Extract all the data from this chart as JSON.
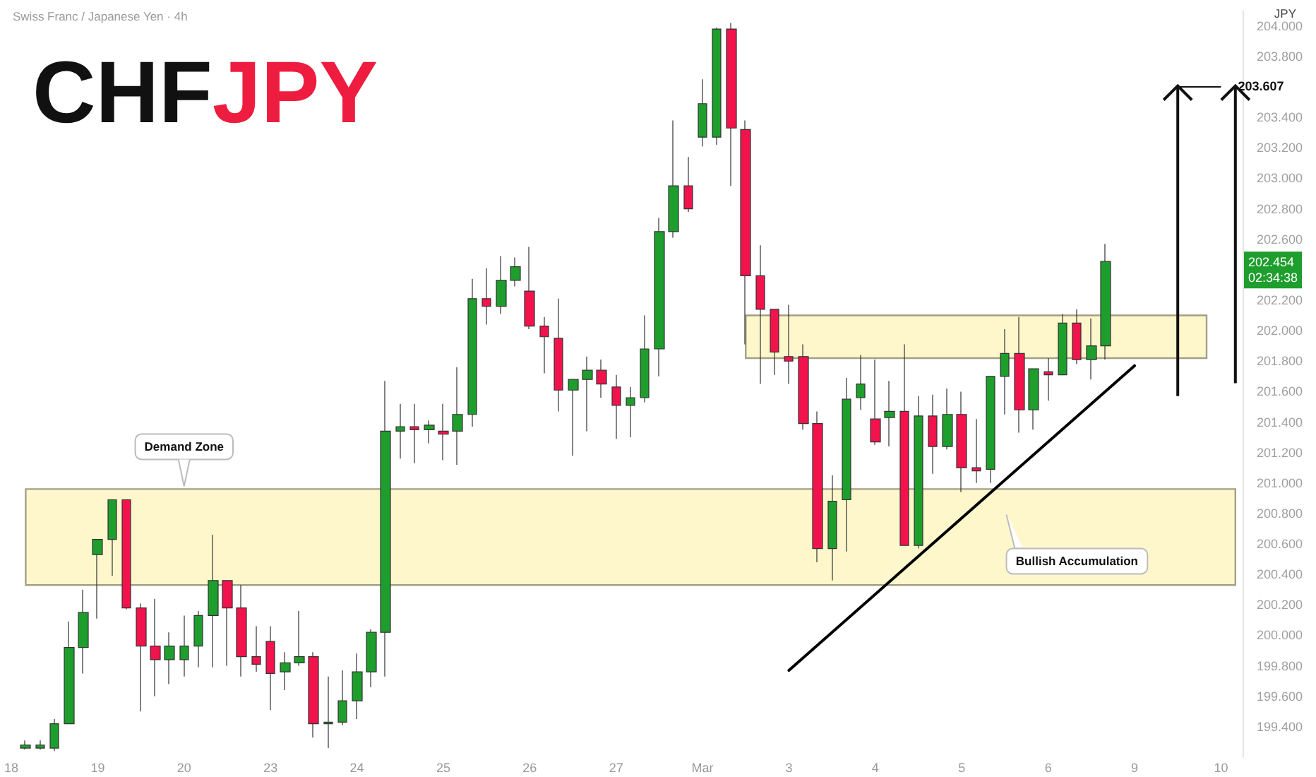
{
  "chart_data": {
    "type": "candlestick",
    "title": "CHFJPY",
    "subtitle": "Swiss Franc / Japanese Yen · 4h",
    "ylabel": "JPY",
    "categories": [
      "18",
      null,
      null,
      null,
      null,
      null,
      "19",
      null,
      null,
      null,
      null,
      null,
      "20",
      null,
      null,
      null,
      null,
      null,
      "23",
      null,
      null,
      null,
      null,
      null,
      "24",
      null,
      null,
      null,
      null,
      null,
      "25",
      null,
      null,
      null,
      null,
      null,
      "26",
      null,
      null,
      null,
      null,
      null,
      "27",
      null,
      null,
      null,
      null,
      null,
      "Mar",
      null,
      null,
      null,
      null,
      null,
      "3",
      null,
      null,
      null,
      null,
      null,
      "4",
      null,
      null,
      null,
      null,
      null,
      "5",
      null,
      null,
      null,
      null,
      null,
      "6",
      null,
      null,
      null,
      null,
      null,
      "9",
      null,
      null,
      null,
      null,
      null,
      "10",
      null
    ],
    "ohlc": [
      null,
      [
        199.26,
        199.31,
        199.25,
        199.28
      ],
      [
        199.26,
        199.31,
        199.25,
        199.28
      ],
      [
        199.26,
        199.45,
        199.24,
        199.42
      ],
      [
        199.42,
        200.09,
        199.42,
        199.92
      ],
      [
        199.92,
        200.3,
        199.75,
        200.15
      ],
      [
        200.53,
        200.63,
        200.11,
        200.63
      ],
      [
        200.63,
        200.89,
        200.39,
        200.89
      ],
      [
        200.89,
        200.89,
        200.17,
        200.18
      ],
      [
        200.18,
        200.21,
        199.5,
        199.93
      ],
      [
        199.93,
        200.24,
        199.6,
        199.84
      ],
      [
        199.84,
        200.02,
        199.68,
        199.93
      ],
      [
        199.84,
        200.13,
        199.73,
        199.93
      ],
      [
        199.93,
        200.16,
        199.79,
        200.13
      ],
      [
        200.13,
        200.66,
        199.79,
        200.36
      ],
      [
        200.36,
        200.36,
        199.8,
        200.18
      ],
      [
        200.18,
        200.33,
        199.73,
        199.86
      ],
      [
        199.86,
        200.06,
        199.76,
        199.81
      ],
      [
        199.96,
        200.06,
        199.51,
        199.75
      ],
      [
        199.76,
        199.89,
        199.64,
        199.82
      ],
      [
        199.82,
        200.16,
        199.8,
        199.86
      ],
      [
        199.86,
        199.89,
        199.33,
        199.42
      ],
      [
        199.42,
        199.73,
        199.26,
        199.43
      ],
      [
        199.43,
        199.77,
        199.41,
        199.57
      ],
      [
        199.57,
        199.88,
        199.45,
        199.76
      ],
      [
        199.76,
        200.04,
        199.66,
        200.02
      ],
      [
        200.02,
        201.67,
        199.73,
        201.34
      ],
      [
        201.34,
        201.52,
        201.16,
        201.37
      ],
      [
        201.37,
        201.52,
        201.13,
        201.35
      ],
      [
        201.35,
        201.41,
        201.26,
        201.38
      ],
      [
        201.34,
        201.52,
        201.15,
        201.32
      ],
      [
        201.34,
        201.76,
        201.12,
        201.45
      ],
      [
        201.45,
        202.34,
        201.37,
        202.21
      ],
      [
        202.21,
        202.41,
        202.04,
        202.16
      ],
      [
        202.16,
        202.49,
        202.11,
        202.33
      ],
      [
        202.33,
        202.48,
        202.29,
        202.42
      ],
      [
        202.26,
        202.55,
        202.01,
        202.03
      ],
      [
        202.03,
        202.09,
        201.72,
        201.96
      ],
      [
        201.95,
        202.21,
        201.47,
        201.61
      ],
      [
        201.61,
        201.68,
        201.18,
        201.68
      ],
      [
        201.68,
        201.83,
        201.34,
        201.74
      ],
      [
        201.74,
        201.81,
        201.56,
        201.65
      ],
      [
        201.63,
        201.71,
        201.29,
        201.51
      ],
      [
        201.51,
        201.63,
        201.3,
        201.56
      ],
      [
        201.56,
        202.1,
        201.53,
        201.88
      ],
      [
        201.88,
        202.74,
        201.7,
        202.65
      ],
      [
        202.65,
        203.38,
        202.61,
        202.95
      ],
      [
        202.95,
        203.14,
        202.78,
        202.8
      ],
      [
        203.27,
        203.65,
        203.21,
        203.49
      ],
      [
        203.27,
        203.99,
        203.22,
        203.98
      ],
      [
        203.98,
        204.02,
        202.95,
        203.33
      ],
      [
        203.32,
        203.38,
        201.91,
        202.36
      ],
      [
        202.36,
        202.56,
        201.65,
        202.14
      ],
      [
        202.14,
        202.14,
        201.71,
        201.86
      ],
      [
        201.83,
        202.17,
        201.65,
        201.8
      ],
      [
        201.83,
        201.91,
        201.35,
        201.39
      ],
      [
        201.39,
        201.47,
        200.48,
        200.57
      ],
      [
        200.57,
        201.05,
        200.36,
        200.88
      ],
      [
        200.89,
        201.69,
        200.55,
        201.55
      ],
      [
        201.56,
        201.84,
        201.48,
        201.65
      ],
      [
        201.42,
        201.81,
        201.25,
        201.27
      ],
      [
        201.43,
        201.67,
        201.24,
        201.47
      ],
      [
        201.47,
        201.91,
        200.59,
        200.59
      ],
      [
        200.59,
        201.57,
        200.57,
        201.44
      ],
      [
        201.44,
        201.58,
        201.06,
        201.24
      ],
      [
        201.24,
        201.62,
        201.22,
        201.45
      ],
      [
        201.45,
        201.6,
        200.94,
        201.1
      ],
      [
        201.1,
        201.42,
        201.0,
        201.08
      ],
      [
        201.09,
        201.7,
        201.0,
        201.7
      ],
      [
        201.7,
        202.01,
        201.45,
        201.85
      ],
      [
        201.85,
        202.09,
        201.33,
        201.48
      ],
      [
        201.48,
        201.75,
        201.35,
        201.75
      ],
      [
        201.73,
        201.82,
        201.54,
        201.71
      ],
      [
        201.71,
        202.11,
        201.71,
        202.05
      ],
      [
        202.05,
        202.14,
        201.78,
        201.81
      ],
      [
        201.81,
        202.08,
        201.68,
        201.9
      ],
      [
        201.9,
        202.57,
        201.81,
        202.454
      ],
      null,
      null,
      null,
      null,
      null,
      null,
      null,
      null,
      null
    ],
    "series": [
      {
        "type": "line",
        "x": [
          "3",
          "9"
        ],
        "values": [
          199.77,
          201.77
        ],
        "color": "#000000"
      }
    ],
    "ylim": [
      199.2,
      204.1
    ],
    "yticks": [
      {
        "value": 199.4,
        "label": "199.400"
      },
      {
        "value": 199.6,
        "label": "199.600"
      },
      {
        "value": 199.8,
        "label": "199.800"
      },
      {
        "value": 200.0,
        "label": "200.000"
      },
      {
        "value": 200.2,
        "label": "200.200"
      },
      {
        "value": 200.4,
        "label": "200.400"
      },
      {
        "value": 200.6,
        "label": "200.600"
      },
      {
        "value": 200.8,
        "label": "200.800"
      },
      {
        "value": 201.0,
        "label": "201.000"
      },
      {
        "value": 201.2,
        "label": "201.200"
      },
      {
        "value": 201.4,
        "label": "201.400"
      },
      {
        "value": 201.6,
        "label": "201.600"
      },
      {
        "value": 201.8,
        "label": "201.800"
      },
      {
        "value": 202.0,
        "label": "202.000"
      },
      {
        "value": 202.2,
        "label": "202.200"
      },
      {
        "value": 202.6,
        "label": "202.600"
      },
      {
        "value": 202.8,
        "label": "202.800"
      },
      {
        "value": 203.0,
        "label": "203.000"
      },
      {
        "value": 203.2,
        "label": "203.200"
      },
      {
        "value": 203.4,
        "label": "203.400"
      },
      {
        "value": 203.8,
        "label": "203.800"
      },
      {
        "value": 204.0,
        "label": "204.000"
      }
    ],
    "bands": [
      {
        "axis": "y",
        "from": 200.33,
        "to": 200.96,
        "label": "Demand Zone",
        "color": "#fff7cc"
      },
      {
        "axis": "y",
        "from": 201.82,
        "to": 202.1,
        "color": "#fff7cc"
      }
    ],
    "ref_lines": [
      {
        "axis": "y",
        "value": 203.607,
        "label": "203.607"
      }
    ],
    "annotations": [
      "Bullish Accumulation",
      "202.454",
      "02:34:38"
    ]
  }
}
